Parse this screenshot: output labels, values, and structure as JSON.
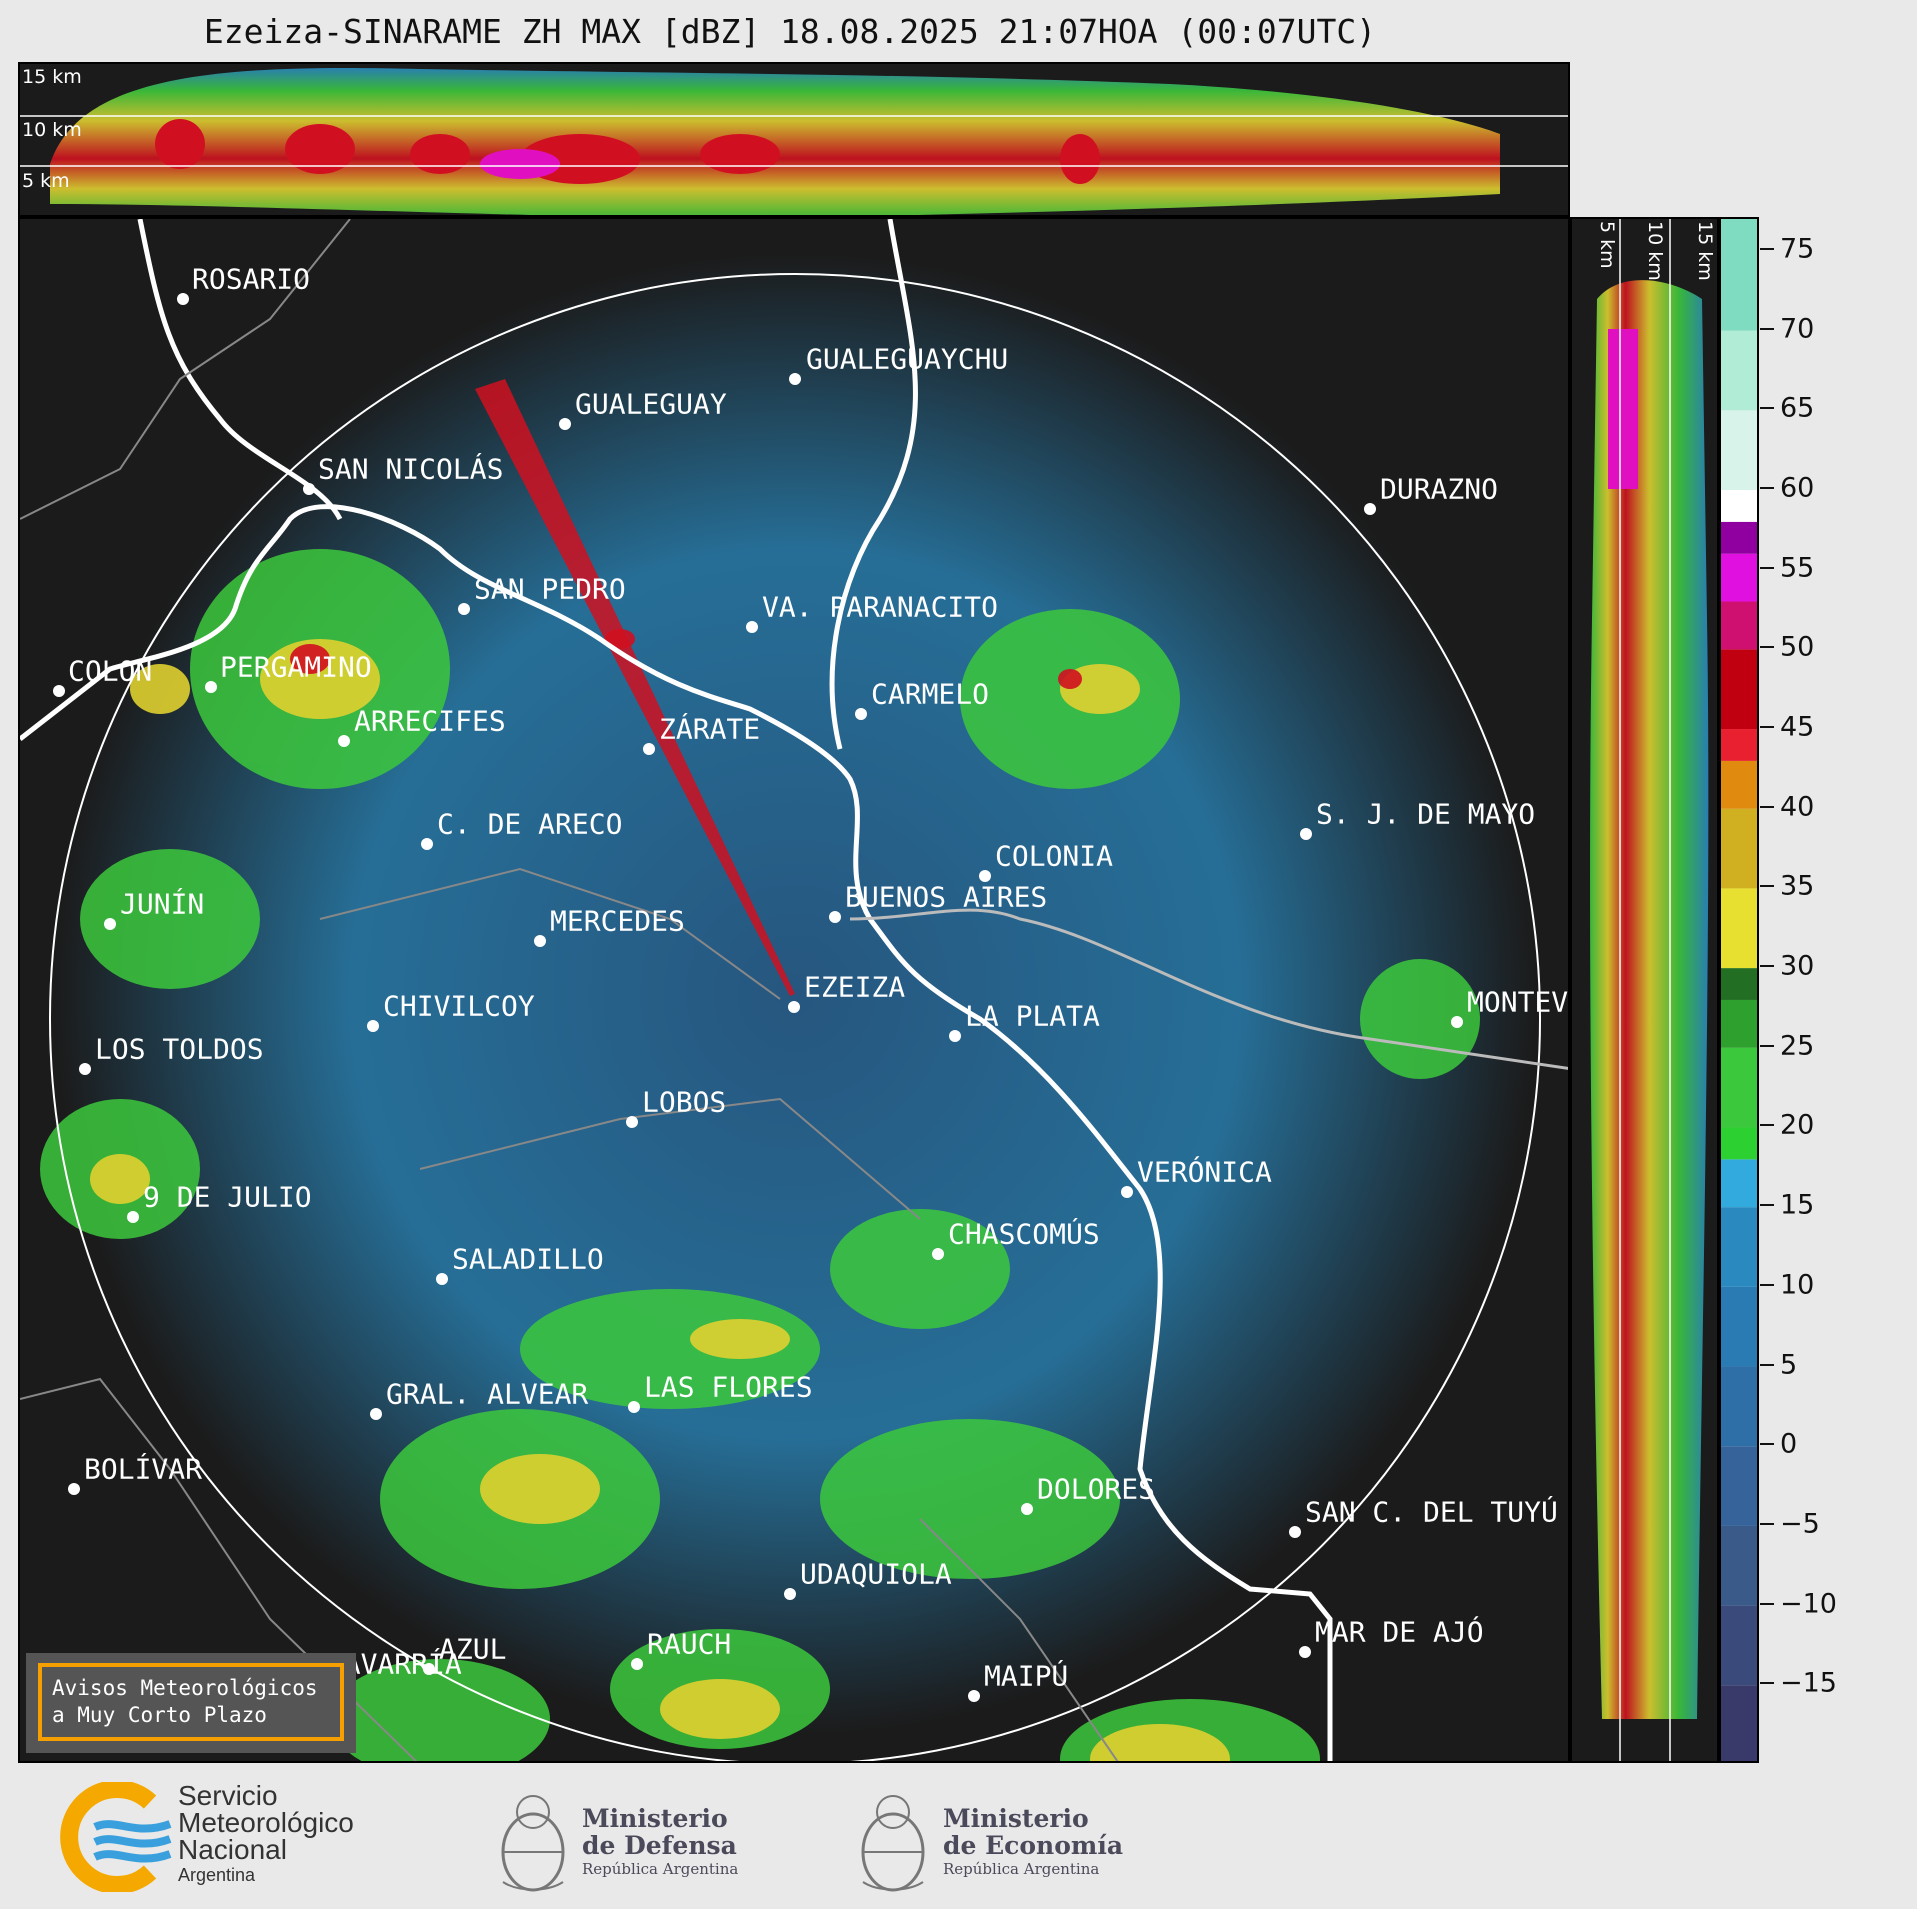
{
  "header": {
    "title": "Ezeiza-SINARAME ZH MAX [dBZ] 18.08.2025 21:07HOA (00:07UTC)"
  },
  "top_profile": {
    "altitude_labels": [
      "15 km",
      "10 km",
      "5 km"
    ]
  },
  "side_profile": {
    "altitude_labels": [
      "5 km",
      "10 km",
      "15 km"
    ]
  },
  "map": {
    "cities": [
      {
        "name": "ROSARIO"
      },
      {
        "name": "GUALEGUAYCHU"
      },
      {
        "name": "GUALEGUAY"
      },
      {
        "name": "SAN NICOLÁS"
      },
      {
        "name": "DURAZNO"
      },
      {
        "name": "SAN PEDRO"
      },
      {
        "name": "VA. PARANACITO"
      },
      {
        "name": "COLON"
      },
      {
        "name": "PERGAMINO"
      },
      {
        "name": "CARMELO"
      },
      {
        "name": "ARRECIFES"
      },
      {
        "name": "ZÁRATE"
      },
      {
        "name": "S. J. DE MAYO"
      },
      {
        "name": "C. DE ARECO"
      },
      {
        "name": "COLONIA"
      },
      {
        "name": "JUNÍN"
      },
      {
        "name": "BUENOS AIRES"
      },
      {
        "name": "MERCEDES"
      },
      {
        "name": "EZEIZA"
      },
      {
        "name": "MONTEVIDEO"
      },
      {
        "name": "CHIVILCOY"
      },
      {
        "name": "LA PLATA"
      },
      {
        "name": "LOS TOLDOS"
      },
      {
        "name": "LOBOS"
      },
      {
        "name": "VERÓNICA"
      },
      {
        "name": "9 DE JULIO"
      },
      {
        "name": "CHASCOMÚS"
      },
      {
        "name": "SALADILLO"
      },
      {
        "name": "GRAL. ALVEAR"
      },
      {
        "name": "LAS FLORES"
      },
      {
        "name": "BOLÍVAR"
      },
      {
        "name": "DOLORES"
      },
      {
        "name": "SAN C. DEL TUYÚ"
      },
      {
        "name": "UDAQUIOLA"
      },
      {
        "name": "AZUL"
      },
      {
        "name": "RAUCH"
      },
      {
        "name": "MAR DE AJÓ"
      },
      {
        "name": "OLAVARRÍA"
      },
      {
        "name": "MAIPÚ"
      }
    ]
  },
  "colorbar": {
    "unit": "dBZ",
    "ticks": [
      "75",
      "70",
      "65",
      "60",
      "55",
      "50",
      "45",
      "40",
      "35",
      "30",
      "25",
      "20",
      "15",
      "10",
      "5",
      "0",
      "−5",
      "−10",
      "−15"
    ],
    "range": [
      -20,
      77
    ],
    "colors": {
      "below_0": "#3a4a7a",
      "0_15": "#2a8ac0",
      "15_20": "#33aadd",
      "20_30": "#3cc83c",
      "30_40": "#e0d030",
      "40_45": "#e08a10",
      "45_50": "#d01020",
      "50_58": "#e010c0",
      "58_60": "#9000a0",
      "60_75": "#a0f0d0"
    }
  },
  "avisos_box": {
    "line1": "Avisos Meteorológicos",
    "line2": "a Muy Corto Plazo"
  },
  "footer": {
    "smn_lines": [
      "Servicio",
      "Meteorológico",
      "Nacional"
    ],
    "smn_sub": "Argentina",
    "ministries": [
      {
        "name_line1": "Ministerio",
        "name_line2": "de Defensa",
        "sub": "República Argentina"
      },
      {
        "name_line1": "Ministerio",
        "name_line2": "de Economía",
        "sub": "República Argentina"
      }
    ]
  }
}
